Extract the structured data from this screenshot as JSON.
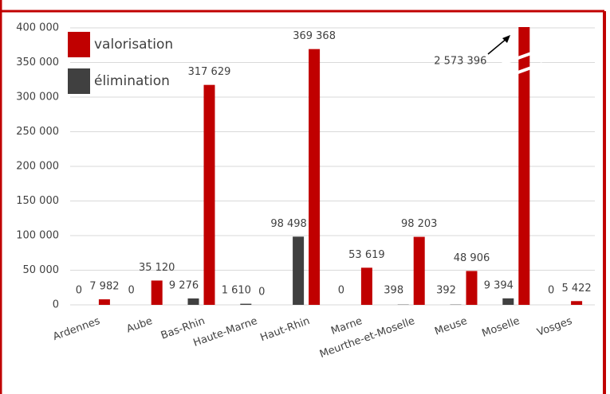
{
  "chart_data": {
    "type": "bar",
    "categories": [
      "Ardennes",
      "Aube",
      "Bas-Rhin",
      "Haute-Marne",
      "Haut-Rhin",
      "Marne",
      "Meurthe-et-Moselle",
      "Meuse",
      "Moselle",
      "Vosges"
    ],
    "series": [
      {
        "name": "valorisation",
        "color": "#c00000",
        "values": [
          7982,
          35120,
          317629,
          0,
          369368,
          53619,
          98203,
          48906,
          2573396,
          5422
        ],
        "value_labels": [
          "7 982",
          "35 120",
          "317 629",
          "0",
          "369 368",
          "53 619",
          "98 203",
          "48 906",
          "2 573 396",
          "5 422"
        ]
      },
      {
        "name": "élimination",
        "color": "#404040",
        "values": [
          0,
          0,
          9276,
          1610,
          98498,
          0,
          398,
          392,
          9394,
          0
        ],
        "value_labels": [
          "0",
          "0",
          "9 276",
          "1 610",
          "98 498",
          "0",
          "398",
          "392",
          "9 394",
          "0"
        ]
      }
    ],
    "ylim": [
      0,
      400000
    ],
    "yticks": [
      {
        "value": 0,
        "label": "0"
      },
      {
        "value": 50000,
        "label": "50 000"
      },
      {
        "value": 100000,
        "label": "100 000"
      },
      {
        "value": 150000,
        "label": "150 000"
      },
      {
        "value": 200000,
        "label": "200 000"
      },
      {
        "value": 250000,
        "label": "250 000"
      },
      {
        "value": 300000,
        "label": "300 000"
      },
      {
        "value": 350000,
        "label": "350 000"
      },
      {
        "value": 400000,
        "label": "400 000"
      }
    ],
    "grid": true,
    "legend": "upper left"
  }
}
